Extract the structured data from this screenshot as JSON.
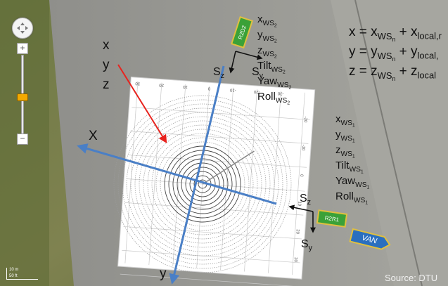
{
  "map_controls": {
    "nav_icon": "pan-control-icon",
    "zoom_in": "+",
    "zoom_out": "−",
    "zoom_level": 0.55,
    "scale_top": "10 m",
    "scale_bottom": "50 ft"
  },
  "local_axes_panel": {
    "x": "x",
    "y": "y",
    "z": "z"
  },
  "global_axes": {
    "x": "X",
    "y": "y"
  },
  "equations": [
    {
      "var": "x",
      "rhs_a": "x",
      "sub_a": "WS",
      "sub_a_n": "n",
      "rhs_b": "x",
      "sub_b": "local,r"
    },
    {
      "var": "y",
      "rhs_a": "y",
      "sub_a": "WS",
      "sub_a_n": "n",
      "rhs_b": "y",
      "sub_b": "local,"
    },
    {
      "var": "z",
      "rhs_a": "z",
      "sub_a": "WS",
      "sub_a_n": "n",
      "rhs_b": "z",
      "sub_b": "local"
    }
  ],
  "ws2": {
    "tag": "R2D2",
    "axis_z": "S",
    "axis_z_sub": "z",
    "axis_y": "S",
    "axis_y_sub": "y",
    "params": [
      {
        "name": "x",
        "sub": "WS",
        "n": "2"
      },
      {
        "name": "y",
        "sub": "WS",
        "n": "2"
      },
      {
        "name": "z",
        "sub": "WS",
        "n": "2"
      },
      {
        "name": "Tilt",
        "sub": "WS",
        "n": "2"
      },
      {
        "name": "Yaw",
        "sub": "WS",
        "n": "2"
      },
      {
        "name": "Roll",
        "sub": "WS",
        "n": "2"
      }
    ]
  },
  "ws1": {
    "tag": "R2R1",
    "axis_z": "S",
    "axis_z_sub": "z",
    "axis_y": "S",
    "axis_y_sub": "y",
    "params": [
      {
        "name": "x",
        "sub": "WS",
        "n": "1"
      },
      {
        "name": "y",
        "sub": "WS",
        "n": "1"
      },
      {
        "name": "z",
        "sub": "WS",
        "n": "1"
      },
      {
        "name": "Tilt",
        "sub": "WS",
        "n": "1"
      },
      {
        "name": "Yaw",
        "sub": "WS",
        "n": "1"
      },
      {
        "name": "Roll",
        "sub": "WS",
        "n": "1"
      }
    ]
  },
  "van_tag": "VAN",
  "grid_ticks": {
    "top": [
      "30",
      "20",
      "10",
      "0",
      "-10",
      "-20",
      "-30"
    ],
    "right": [
      "-20",
      "-10",
      "0",
      "10",
      "20",
      "30"
    ]
  },
  "source": "Source: DTU",
  "colors": {
    "arrow_red": "#e8231e",
    "axis_blue": "#4a7fc6",
    "tag_green": "#3aa138",
    "van_blue": "#2a6fbf"
  }
}
